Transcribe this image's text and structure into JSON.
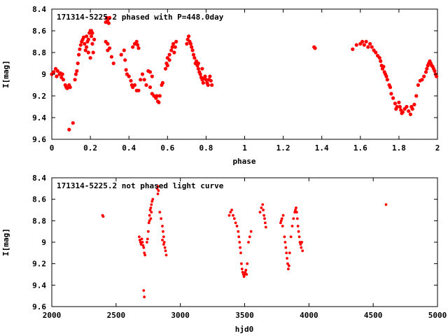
{
  "chart_data": [
    {
      "type": "scatter",
      "title": "171314-5225.2 phased with P=448.0day",
      "xlabel": "phase",
      "ylabel": "I[mag]",
      "xlim": [
        0,
        2
      ],
      "ylim": [
        9.6,
        8.4
      ],
      "y_inverted": true,
      "grid": false,
      "marker_color": "#ff0000",
      "xticks": [
        "0",
        "0.2",
        "0.4",
        "0.6",
        "0.8",
        "1",
        "1.2",
        "1.4",
        "1.6",
        "1.8",
        "2"
      ],
      "yticks": [
        "8.4",
        "8.6",
        "8.8",
        "9",
        "9.2",
        "9.4",
        "9.6"
      ],
      "points": [
        [
          0.0,
          9.0
        ],
        [
          0.01,
          8.98
        ],
        [
          0.02,
          8.95
        ],
        [
          0.025,
          9.02
        ],
        [
          0.03,
          8.97
        ],
        [
          0.04,
          9.0
        ],
        [
          0.045,
          8.99
        ],
        [
          0.05,
          9.03
        ],
        [
          0.055,
          9.0
        ],
        [
          0.06,
          9.05
        ],
        [
          0.07,
          9.1
        ],
        [
          0.075,
          9.12
        ],
        [
          0.08,
          9.13
        ],
        [
          0.085,
          9.12
        ],
        [
          0.09,
          9.1
        ],
        [
          0.095,
          9.12
        ],
        [
          0.09,
          9.51
        ],
        [
          0.11,
          9.45
        ],
        [
          0.12,
          9.05
        ],
        [
          0.125,
          9.0
        ],
        [
          0.13,
          8.97
        ],
        [
          0.135,
          8.9
        ],
        [
          0.14,
          8.82
        ],
        [
          0.145,
          8.77
        ],
        [
          0.15,
          8.73
        ],
        [
          0.155,
          8.7
        ],
        [
          0.16,
          8.68
        ],
        [
          0.165,
          8.66
        ],
        [
          0.17,
          8.72
        ],
        [
          0.175,
          8.78
        ],
        [
          0.18,
          8.75
        ],
        [
          0.185,
          8.7
        ],
        [
          0.19,
          8.68
        ],
        [
          0.195,
          8.62
        ],
        [
          0.2,
          8.6
        ],
        [
          0.205,
          8.65
        ],
        [
          0.21,
          8.72
        ],
        [
          0.215,
          8.8
        ],
        [
          0.2,
          8.85
        ],
        [
          0.19,
          8.8
        ],
        [
          0.18,
          8.65
        ],
        [
          0.205,
          8.6
        ],
        [
          0.21,
          8.62
        ],
        [
          0.22,
          8.68
        ],
        [
          0.28,
          8.52
        ],
        [
          0.285,
          8.48
        ],
        [
          0.29,
          8.5
        ],
        [
          0.295,
          8.53
        ],
        [
          0.3,
          8.48
        ],
        [
          0.28,
          8.7
        ],
        [
          0.29,
          8.72
        ],
        [
          0.29,
          8.78
        ],
        [
          0.3,
          8.76
        ],
        [
          0.31,
          8.84
        ],
        [
          0.32,
          8.9
        ],
        [
          0.36,
          8.82
        ],
        [
          0.375,
          8.78
        ],
        [
          0.38,
          8.87
        ],
        [
          0.385,
          8.96
        ],
        [
          0.39,
          9.0
        ],
        [
          0.4,
          9.02
        ],
        [
          0.41,
          9.06
        ],
        [
          0.415,
          9.1
        ],
        [
          0.42,
          9.12
        ],
        [
          0.42,
          8.75
        ],
        [
          0.43,
          8.72
        ],
        [
          0.44,
          8.7
        ],
        [
          0.445,
          8.73
        ],
        [
          0.45,
          8.76
        ],
        [
          0.43,
          9.1
        ],
        [
          0.44,
          9.15
        ],
        [
          0.45,
          9.15
        ],
        [
          0.46,
          9.05
        ],
        [
          0.47,
          9.0
        ],
        [
          0.48,
          9.05
        ],
        [
          0.49,
          9.1
        ],
        [
          0.5,
          8.97
        ],
        [
          0.51,
          8.98
        ],
        [
          0.52,
          9.02
        ],
        [
          0.51,
          9.12
        ],
        [
          0.52,
          9.18
        ],
        [
          0.53,
          9.2
        ],
        [
          0.54,
          9.22
        ],
        [
          0.545,
          9.2
        ],
        [
          0.55,
          9.25
        ],
        [
          0.555,
          9.26
        ],
        [
          0.56,
          9.2
        ],
        [
          0.57,
          9.1
        ],
        [
          0.575,
          9.08
        ],
        [
          0.59,
          8.95
        ],
        [
          0.595,
          8.9
        ],
        [
          0.6,
          8.85
        ],
        [
          0.61,
          8.82
        ],
        [
          0.62,
          8.78
        ],
        [
          0.625,
          8.75
        ],
        [
          0.63,
          8.72
        ],
        [
          0.635,
          8.8
        ],
        [
          0.64,
          8.75
        ],
        [
          0.645,
          8.7
        ],
        [
          0.6,
          8.92
        ],
        [
          0.61,
          8.87
        ],
        [
          0.7,
          8.72
        ],
        [
          0.705,
          8.68
        ],
        [
          0.71,
          8.65
        ],
        [
          0.715,
          8.7
        ],
        [
          0.72,
          8.72
        ],
        [
          0.725,
          8.75
        ],
        [
          0.73,
          8.78
        ],
        [
          0.735,
          8.82
        ],
        [
          0.74,
          8.85
        ],
        [
          0.745,
          8.9
        ],
        [
          0.75,
          8.88
        ],
        [
          0.755,
          8.92
        ],
        [
          0.76,
          8.95
        ],
        [
          0.765,
          8.98
        ],
        [
          0.77,
          9.0
        ],
        [
          0.775,
          9.03
        ],
        [
          0.78,
          9.05
        ],
        [
          0.785,
          9.08
        ],
        [
          0.79,
          9.04
        ],
        [
          0.795,
          9.02
        ],
        [
          0.8,
          9.05
        ],
        [
          0.805,
          9.08
        ],
        [
          0.81,
          9.1
        ],
        [
          0.815,
          9.05
        ],
        [
          0.82,
          9.02
        ],
        [
          0.825,
          9.06
        ],
        [
          0.83,
          9.1
        ],
        [
          0.76,
          8.9
        ],
        [
          0.78,
          8.95
        ],
        [
          1.36,
          8.75
        ],
        [
          1.365,
          8.76
        ],
        [
          1.56,
          8.77
        ],
        [
          1.58,
          8.73
        ],
        [
          1.6,
          8.72
        ],
        [
          1.61,
          8.7
        ],
        [
          1.62,
          8.73
        ],
        [
          1.63,
          8.7
        ],
        [
          1.64,
          8.75
        ],
        [
          1.65,
          8.72
        ],
        [
          1.66,
          8.75
        ],
        [
          1.67,
          8.78
        ],
        [
          1.68,
          8.8
        ],
        [
          1.69,
          8.83
        ],
        [
          1.7,
          8.85
        ],
        [
          1.705,
          8.88
        ],
        [
          1.71,
          8.92
        ],
        [
          1.715,
          8.95
        ],
        [
          1.72,
          8.93
        ],
        [
          1.725,
          8.98
        ],
        [
          1.73,
          9.0
        ],
        [
          1.735,
          9.02
        ],
        [
          1.74,
          9.05
        ],
        [
          1.75,
          9.1
        ],
        [
          1.755,
          9.12
        ],
        [
          1.76,
          9.18
        ],
        [
          1.77,
          9.22
        ],
        [
          1.78,
          9.27
        ],
        [
          1.785,
          9.32
        ],
        [
          1.79,
          9.3
        ],
        [
          1.8,
          9.26
        ],
        [
          1.805,
          9.3
        ],
        [
          1.81,
          9.33
        ],
        [
          1.815,
          9.36
        ],
        [
          1.82,
          9.35
        ],
        [
          1.83,
          9.32
        ],
        [
          1.84,
          9.3
        ],
        [
          1.85,
          9.34
        ],
        [
          1.86,
          9.37
        ],
        [
          1.865,
          9.3
        ],
        [
          1.87,
          9.32
        ],
        [
          1.88,
          9.28
        ],
        [
          1.89,
          9.2
        ],
        [
          1.9,
          9.1
        ],
        [
          1.91,
          9.06
        ],
        [
          1.92,
          9.05
        ],
        [
          1.93,
          9.02
        ],
        [
          1.94,
          8.98
        ],
        [
          1.945,
          8.95
        ],
        [
          1.95,
          8.92
        ],
        [
          1.955,
          8.9
        ],
        [
          1.96,
          8.88
        ],
        [
          1.965,
          8.9
        ],
        [
          1.97,
          8.92
        ],
        [
          1.975,
          8.93
        ],
        [
          1.98,
          8.95
        ],
        [
          1.985,
          8.97
        ],
        [
          1.99,
          9.0
        ],
        [
          1.995,
          9.02
        ]
      ]
    },
    {
      "type": "scatter",
      "title": "171314-5225.2 not phased light curve",
      "xlabel": "hjd0",
      "ylabel": "I[mag]",
      "xlim": [
        2000,
        5000
      ],
      "ylim": [
        9.6,
        8.4
      ],
      "y_inverted": true,
      "grid": false,
      "marker_color": "#ff0000",
      "xticks": [
        "2000",
        "2500",
        "3000",
        "3500",
        "4000",
        "4500",
        "5000"
      ],
      "yticks": [
        "8.4",
        "8.6",
        "8.8",
        "9",
        "9.2",
        "9.4",
        "9.6"
      ],
      "points": [
        [
          2395,
          8.75
        ],
        [
          2400,
          8.76
        ],
        [
          2680,
          8.95
        ],
        [
          2685,
          8.98
        ],
        [
          2690,
          9.0
        ],
        [
          2695,
          9.02
        ],
        [
          2700,
          8.97
        ],
        [
          2705,
          9.0
        ],
        [
          2710,
          9.03
        ],
        [
          2715,
          9.05
        ],
        [
          2720,
          9.1
        ],
        [
          2725,
          9.12
        ],
        [
          2715,
          9.45
        ],
        [
          2720,
          9.51
        ],
        [
          2740,
          9.0
        ],
        [
          2745,
          8.97
        ],
        [
          2750,
          8.9
        ],
        [
          2755,
          8.82
        ],
        [
          2760,
          8.75
        ],
        [
          2765,
          8.7
        ],
        [
          2770,
          8.68
        ],
        [
          2775,
          8.65
        ],
        [
          2780,
          8.62
        ],
        [
          2785,
          8.6
        ],
        [
          2775,
          8.72
        ],
        [
          2770,
          8.78
        ],
        [
          2760,
          8.8
        ],
        [
          2820,
          8.5
        ],
        [
          2825,
          8.48
        ],
        [
          2830,
          8.52
        ],
        [
          2825,
          8.55
        ],
        [
          2840,
          8.72
        ],
        [
          2850,
          8.78
        ],
        [
          2860,
          8.85
        ],
        [
          2865,
          8.9
        ],
        [
          2870,
          8.95
        ],
        [
          2875,
          9.0
        ],
        [
          2880,
          9.05
        ],
        [
          2885,
          9.08
        ],
        [
          2890,
          9.12
        ],
        [
          2870,
          9.02
        ],
        [
          2860,
          8.98
        ],
        [
          3380,
          8.75
        ],
        [
          3390,
          8.72
        ],
        [
          3400,
          8.7
        ],
        [
          3410,
          8.75
        ],
        [
          3420,
          8.78
        ],
        [
          3430,
          8.82
        ],
        [
          3440,
          8.85
        ],
        [
          3450,
          8.9
        ],
        [
          3455,
          8.95
        ],
        [
          3460,
          9.0
        ],
        [
          3465,
          9.05
        ],
        [
          3470,
          9.1
        ],
        [
          3475,
          9.2
        ],
        [
          3480,
          9.25
        ],
        [
          3485,
          9.28
        ],
        [
          3490,
          9.3
        ],
        [
          3495,
          9.32
        ],
        [
          3500,
          9.3
        ],
        [
          3505,
          9.28
        ],
        [
          3510,
          9.26
        ],
        [
          3515,
          9.3
        ],
        [
          3520,
          9.2
        ],
        [
          3530,
          9.0
        ],
        [
          3540,
          8.95
        ],
        [
          3550,
          8.9
        ],
        [
          3620,
          8.72
        ],
        [
          3630,
          8.68
        ],
        [
          3640,
          8.65
        ],
        [
          3645,
          8.7
        ],
        [
          3650,
          8.75
        ],
        [
          3655,
          8.78
        ],
        [
          3660,
          8.82
        ],
        [
          3665,
          8.86
        ],
        [
          3780,
          8.82
        ],
        [
          3785,
          8.8
        ],
        [
          3790,
          8.78
        ],
        [
          3795,
          8.85
        ],
        [
          3800,
          8.75
        ],
        [
          3810,
          8.95
        ],
        [
          3815,
          9.0
        ],
        [
          3820,
          9.05
        ],
        [
          3825,
          9.1
        ],
        [
          3830,
          9.15
        ],
        [
          3835,
          9.2
        ],
        [
          3840,
          9.25
        ],
        [
          3845,
          9.22
        ],
        [
          3850,
          9.1
        ],
        [
          3860,
          8.95
        ],
        [
          3870,
          8.85
        ],
        [
          3880,
          8.78
        ],
        [
          3890,
          8.72
        ],
        [
          3895,
          8.7
        ],
        [
          3900,
          8.68
        ],
        [
          3905,
          8.72
        ],
        [
          3910,
          8.78
        ],
        [
          3915,
          8.85
        ],
        [
          3920,
          8.9
        ],
        [
          3925,
          8.95
        ],
        [
          3930,
          9.0
        ],
        [
          3935,
          9.02
        ],
        [
          3940,
          9.05
        ],
        [
          3945,
          9.0
        ],
        [
          3950,
          9.08
        ],
        [
          4600,
          8.65
        ]
      ]
    }
  ]
}
